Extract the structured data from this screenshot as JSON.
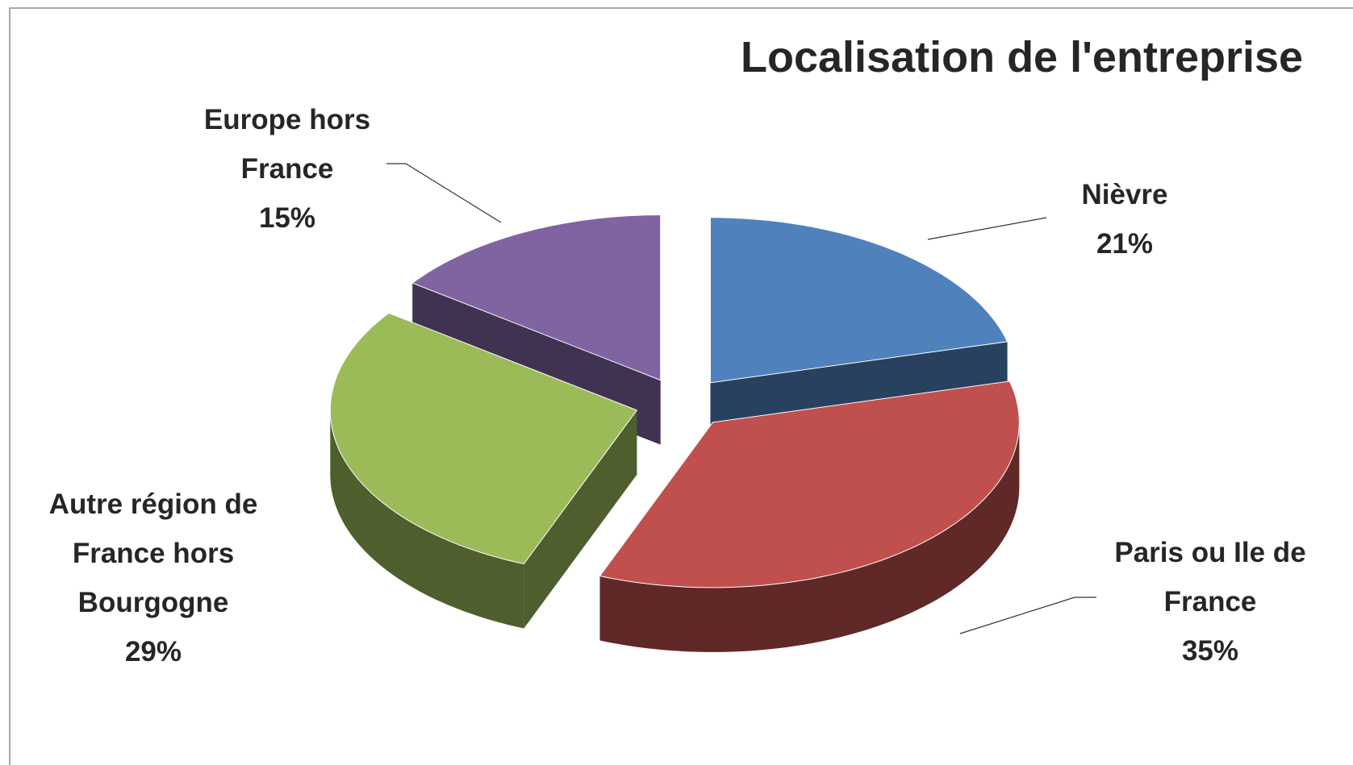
{
  "chart_data": {
    "type": "pie3d",
    "title": "Localisation de l'entreprise",
    "categories": [
      "Nièvre",
      "Paris ou Ile de France",
      "Autre région de France hors Bourgogne",
      "Europe hors France"
    ],
    "values": [
      21,
      35,
      29,
      15
    ],
    "value_labels": [
      "21%",
      "35%",
      "29%",
      "15%"
    ],
    "colors": [
      "#4f81bd",
      "#c0504d",
      "#9bbb59",
      "#8064a2"
    ]
  }
}
